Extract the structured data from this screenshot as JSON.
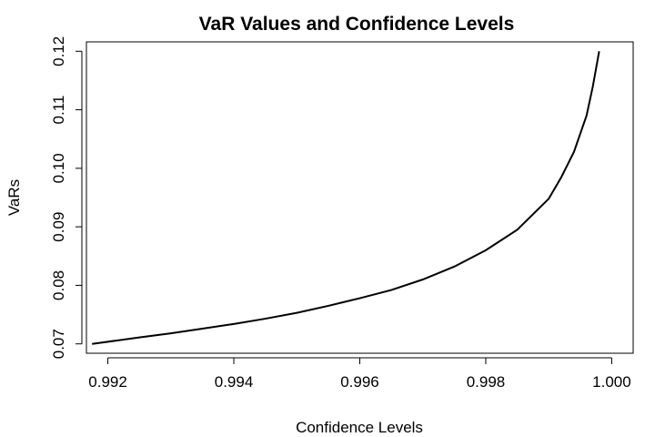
{
  "chart_data": {
    "type": "line",
    "title": "VaR Values and Confidence Levels",
    "xlabel": "Confidence Levels",
    "ylabel": "VaRs",
    "xlim": [
      0.99166,
      1.00034
    ],
    "ylim": [
      0.0684,
      0.1216
    ],
    "xticks": [
      0.992,
      0.994,
      0.996,
      0.998,
      1.0
    ],
    "xtick_labels": [
      "0.992",
      "0.994",
      "0.996",
      "0.998",
      "1.000"
    ],
    "yticks": [
      0.07,
      0.08,
      0.09,
      0.1,
      0.11,
      0.12
    ],
    "ytick_labels": [
      "0.07",
      "0.08",
      "0.09",
      "0.10",
      "0.11",
      "0.12"
    ],
    "grid": false,
    "legend": "none",
    "series": [
      {
        "color": "#000000",
        "x": [
          0.99175,
          0.9925,
          0.993,
          0.9935,
          0.994,
          0.9945,
          0.995,
          0.9955,
          0.996,
          0.9965,
          0.997,
          0.9975,
          0.998,
          0.9985,
          0.999,
          0.9992,
          0.9994,
          0.9996,
          0.9997,
          0.9998
        ],
        "y": [
          0.07,
          0.0711,
          0.0718,
          0.0726,
          0.0734,
          0.0743,
          0.0753,
          0.0765,
          0.0778,
          0.0792,
          0.081,
          0.0832,
          0.086,
          0.0895,
          0.0948,
          0.0985,
          0.1028,
          0.109,
          0.114,
          0.12
        ]
      }
    ]
  }
}
